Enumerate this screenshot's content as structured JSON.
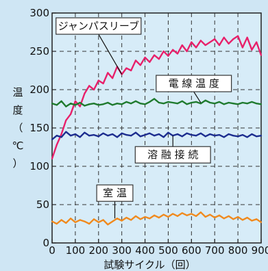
{
  "chart_data": {
    "type": "line",
    "title": "",
    "xlabel": "試験サイクル（回）",
    "ylabel": [
      "温",
      "度",
      "（",
      "℃",
      "）"
    ],
    "xlim": [
      0,
      900
    ],
    "ylim": [
      0,
      300
    ],
    "x_ticks": [
      0,
      100,
      200,
      300,
      400,
      500,
      600,
      700,
      800,
      900
    ],
    "y_ticks": [
      0,
      50,
      100,
      150,
      200,
      250,
      300
    ],
    "grid": true,
    "legend": "none",
    "colors": {
      "background": "#cfe6f4",
      "plot_background": "#d7ecf8",
      "grid": "#333333",
      "jumper": "#e8206a",
      "wire": "#1f7a2e",
      "junction": "#1c2d8f",
      "room": "#f08a1e"
    },
    "series": [
      {
        "name": "ジャンパスリーブ",
        "color": "#e8206a",
        "x": [
          0,
          20,
          40,
          60,
          80,
          100,
          120,
          140,
          160,
          180,
          200,
          220,
          240,
          260,
          280,
          300,
          320,
          340,
          360,
          380,
          400,
          420,
          440,
          460,
          480,
          500,
          520,
          540,
          560,
          580,
          600,
          620,
          640,
          660,
          680,
          700,
          720,
          740,
          760,
          780,
          800,
          820,
          840,
          860,
          880,
          900
        ],
        "y": [
          110,
          128,
          142,
          160,
          168,
          185,
          178,
          195,
          205,
          200,
          212,
          208,
          222,
          215,
          230,
          220,
          228,
          225,
          238,
          232,
          242,
          236,
          245,
          240,
          250,
          244,
          252,
          247,
          258,
          250,
          262,
          255,
          264,
          258,
          262,
          266,
          258,
          268,
          260,
          266,
          270,
          255,
          268,
          252,
          262,
          245
        ]
      },
      {
        "name": "電線温度",
        "color": "#1f7a2e",
        "x": [
          0,
          20,
          40,
          60,
          80,
          100,
          120,
          140,
          160,
          180,
          200,
          220,
          240,
          260,
          280,
          300,
          320,
          340,
          360,
          380,
          400,
          420,
          440,
          460,
          480,
          500,
          520,
          540,
          560,
          580,
          600,
          620,
          640,
          660,
          680,
          700,
          720,
          740,
          760,
          780,
          800,
          820,
          840,
          860,
          880,
          900
        ],
        "y": [
          182,
          180,
          185,
          178,
          182,
          180,
          183,
          179,
          181,
          182,
          180,
          181,
          183,
          180,
          182,
          181,
          184,
          182,
          185,
          182,
          181,
          184,
          188,
          183,
          182,
          184,
          183,
          182,
          185,
          181,
          183,
          184,
          182,
          186,
          183,
          182,
          184,
          181,
          183,
          182,
          181,
          183,
          182,
          184,
          182,
          181
        ]
      },
      {
        "name": "溶融接続",
        "color": "#1c2d8f",
        "x": [
          0,
          20,
          40,
          60,
          80,
          100,
          120,
          140,
          160,
          180,
          200,
          220,
          240,
          260,
          280,
          300,
          320,
          340,
          360,
          380,
          400,
          420,
          440,
          460,
          480,
          500,
          520,
          540,
          560,
          580,
          600,
          620,
          640,
          660,
          680,
          700,
          720,
          740,
          760,
          780,
          800,
          820,
          840,
          860,
          880,
          900
        ],
        "y": [
          135,
          140,
          138,
          145,
          140,
          142,
          138,
          144,
          140,
          141,
          139,
          143,
          140,
          142,
          138,
          143,
          141,
          140,
          144,
          139,
          141,
          143,
          140,
          142,
          138,
          144,
          140,
          142,
          139,
          143,
          141,
          140,
          143,
          139,
          142,
          140,
          141,
          138,
          142,
          140,
          139,
          141,
          138,
          142,
          139,
          140
        ]
      },
      {
        "name": "室温",
        "color": "#f08a1e",
        "x": [
          0,
          20,
          40,
          60,
          80,
          100,
          120,
          140,
          160,
          180,
          200,
          220,
          240,
          260,
          280,
          300,
          320,
          340,
          360,
          380,
          400,
          420,
          440,
          460,
          480,
          500,
          520,
          540,
          560,
          580,
          600,
          620,
          640,
          660,
          680,
          700,
          720,
          740,
          760,
          780,
          800,
          820,
          840,
          860,
          880,
          900
        ],
        "y": [
          28,
          25,
          30,
          26,
          32,
          27,
          30,
          28,
          25,
          31,
          27,
          30,
          24,
          28,
          32,
          29,
          33,
          30,
          35,
          31,
          34,
          32,
          36,
          33,
          37,
          34,
          38,
          35,
          39,
          36,
          38,
          35,
          40,
          34,
          37,
          33,
          36,
          32,
          35,
          31,
          34,
          30,
          33,
          29,
          31,
          27
        ]
      }
    ],
    "annotations": [
      {
        "label": "ジャンパスリーブ",
        "series": "ジャンパスリーブ",
        "anchor_x": 200,
        "anchor_y": 283,
        "point_x": 300,
        "point_y": 220
      },
      {
        "label": "電 線 温 度",
        "series": "電線温度",
        "anchor_x": 610,
        "anchor_y": 208,
        "point_x": 640,
        "point_y": 183
      },
      {
        "label": "溶 融 接 続",
        "series": "溶融接続",
        "anchor_x": 520,
        "anchor_y": 115,
        "point_x": 520,
        "point_y": 140
      },
      {
        "label": "室 温",
        "series": "室温",
        "anchor_x": 270,
        "anchor_y": 65,
        "point_x": 270,
        "point_y": 32
      }
    ]
  }
}
